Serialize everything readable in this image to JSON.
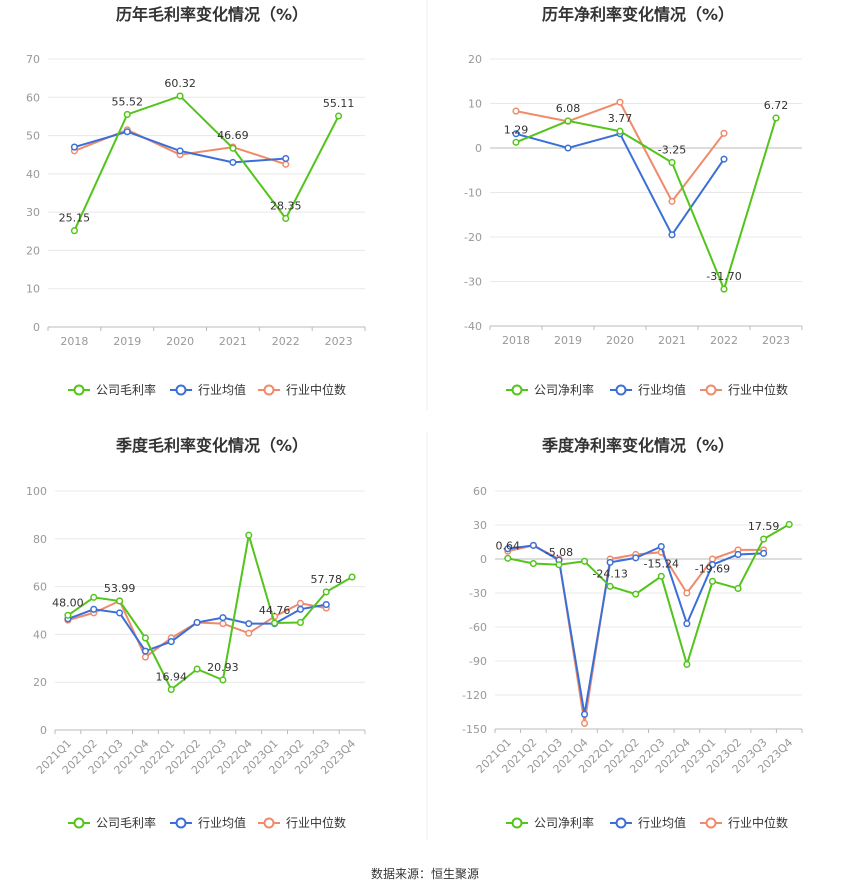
{
  "footer": {
    "source": "数据来源：恒生聚源"
  },
  "colors": {
    "company": "#52c41a",
    "avg": "#3b6fd8",
    "median": "#f08a6a"
  },
  "chart_data": [
    {
      "type": "line",
      "title": "历年毛利率变化情况（%）",
      "categories": [
        "2018",
        "2019",
        "2020",
        "2021",
        "2022",
        "2023"
      ],
      "ylim": [
        0,
        70
      ],
      "yticks": [
        0,
        10,
        20,
        30,
        40,
        50,
        60,
        70
      ],
      "legend": [
        "公司毛利率",
        "行业均值",
        "行业中位数"
      ],
      "series": [
        {
          "name": "公司毛利率",
          "values": [
            25.15,
            55.52,
            60.32,
            46.69,
            28.35,
            55.11
          ],
          "labels": [
            "25.15",
            "55.52",
            "60.32",
            "46.69",
            "28.35",
            "55.11"
          ]
        },
        {
          "name": "行业均值",
          "values": [
            47.0,
            51.0,
            46.0,
            43.0,
            44.0,
            null
          ]
        },
        {
          "name": "行业中位数",
          "values": [
            46.0,
            51.5,
            45.0,
            47.0,
            42.5,
            null
          ]
        }
      ]
    },
    {
      "type": "line",
      "title": "历年净利率变化情况（%）",
      "categories": [
        "2018",
        "2019",
        "2020",
        "2021",
        "2022",
        "2023"
      ],
      "ylim": [
        -40,
        20
      ],
      "yticks": [
        -40,
        -30,
        -20,
        -10,
        0,
        10,
        20
      ],
      "legend": [
        "公司净利率",
        "行业均值",
        "行业中位数"
      ],
      "series": [
        {
          "name": "公司净利率",
          "values": [
            1.29,
            6.08,
            3.77,
            -3.25,
            -31.7,
            6.72
          ],
          "labels": [
            "1.29",
            "6.08",
            "3.77",
            "-3.25",
            "-31.70",
            "6.72"
          ]
        },
        {
          "name": "行业均值",
          "values": [
            3.2,
            0,
            3.2,
            -19.5,
            -2.5,
            null
          ]
        },
        {
          "name": "行业中位数",
          "values": [
            8.3,
            6.0,
            10.3,
            -12.0,
            3.3,
            null
          ]
        }
      ]
    },
    {
      "type": "line",
      "title": "季度毛利率变化情况（%）",
      "categories": [
        "2021Q1",
        "2021Q2",
        "2021Q3",
        "2021Q4",
        "2022Q1",
        "2022Q2",
        "2022Q3",
        "2022Q4",
        "2023Q1",
        "2023Q2",
        "2023Q3",
        "2023Q4"
      ],
      "ylim": [
        0,
        100
      ],
      "yticks": [
        0,
        20,
        40,
        60,
        80,
        100
      ],
      "legend": [
        "公司毛利率",
        "行业均值",
        "行业中位数"
      ],
      "series": [
        {
          "name": "公司毛利率",
          "values": [
            48.0,
            55.5,
            53.99,
            38.5,
            16.94,
            25.5,
            20.93,
            81.5,
            44.76,
            45.0,
            57.78,
            64.0
          ],
          "labels": [
            "48.00",
            null,
            "53.99",
            null,
            "16.94",
            null,
            "20.93",
            null,
            "44.76",
            null,
            "57.78",
            null
          ]
        },
        {
          "name": "行业均值",
          "values": [
            46.5,
            50.5,
            49.0,
            33.0,
            37.0,
            45.0,
            47.0,
            44.5,
            44.5,
            50.5,
            52.5,
            null
          ]
        },
        {
          "name": "行业中位数",
          "values": [
            46.0,
            49.0,
            54.0,
            30.5,
            38.5,
            45.0,
            44.5,
            40.5,
            47.5,
            53.0,
            51.0,
            null
          ]
        }
      ]
    },
    {
      "type": "line",
      "title": "季度净利率变化情况（%）",
      "categories": [
        "2021Q1",
        "2021Q2",
        "2021Q3",
        "2021Q4",
        "2022Q1",
        "2022Q2",
        "2022Q3",
        "2022Q4",
        "2023Q1",
        "2023Q2",
        "2023Q3",
        "2023Q4"
      ],
      "ylim": [
        -150,
        60
      ],
      "yticks": [
        -150,
        -120,
        -90,
        -60,
        -30,
        0,
        30,
        60
      ],
      "legend": [
        "公司净利率",
        "行业均值",
        "行业中位数"
      ],
      "series": [
        {
          "name": "公司净利率",
          "values": [
            0.64,
            -4.0,
            -5.08,
            -2.0,
            -24.13,
            -31.0,
            -15.24,
            -93.0,
            -19.69,
            -26.0,
            17.59,
            30.5
          ],
          "labels": [
            "0.64",
            null,
            "-5.08",
            null,
            "-24.13",
            null,
            "-15.24",
            null,
            "-19.69",
            null,
            "17.59",
            null
          ]
        },
        {
          "name": "行业均值",
          "values": [
            9.0,
            12.0,
            -1.0,
            -137.0,
            -3.0,
            1.0,
            11.0,
            -57.0,
            -5.0,
            4.0,
            5.0,
            null
          ]
        },
        {
          "name": "行业中位数",
          "values": [
            7.0,
            12.0,
            0.0,
            -145.0,
            0.0,
            4.0,
            6.0,
            -30.0,
            0.0,
            8.0,
            8.0,
            null
          ]
        }
      ]
    }
  ]
}
